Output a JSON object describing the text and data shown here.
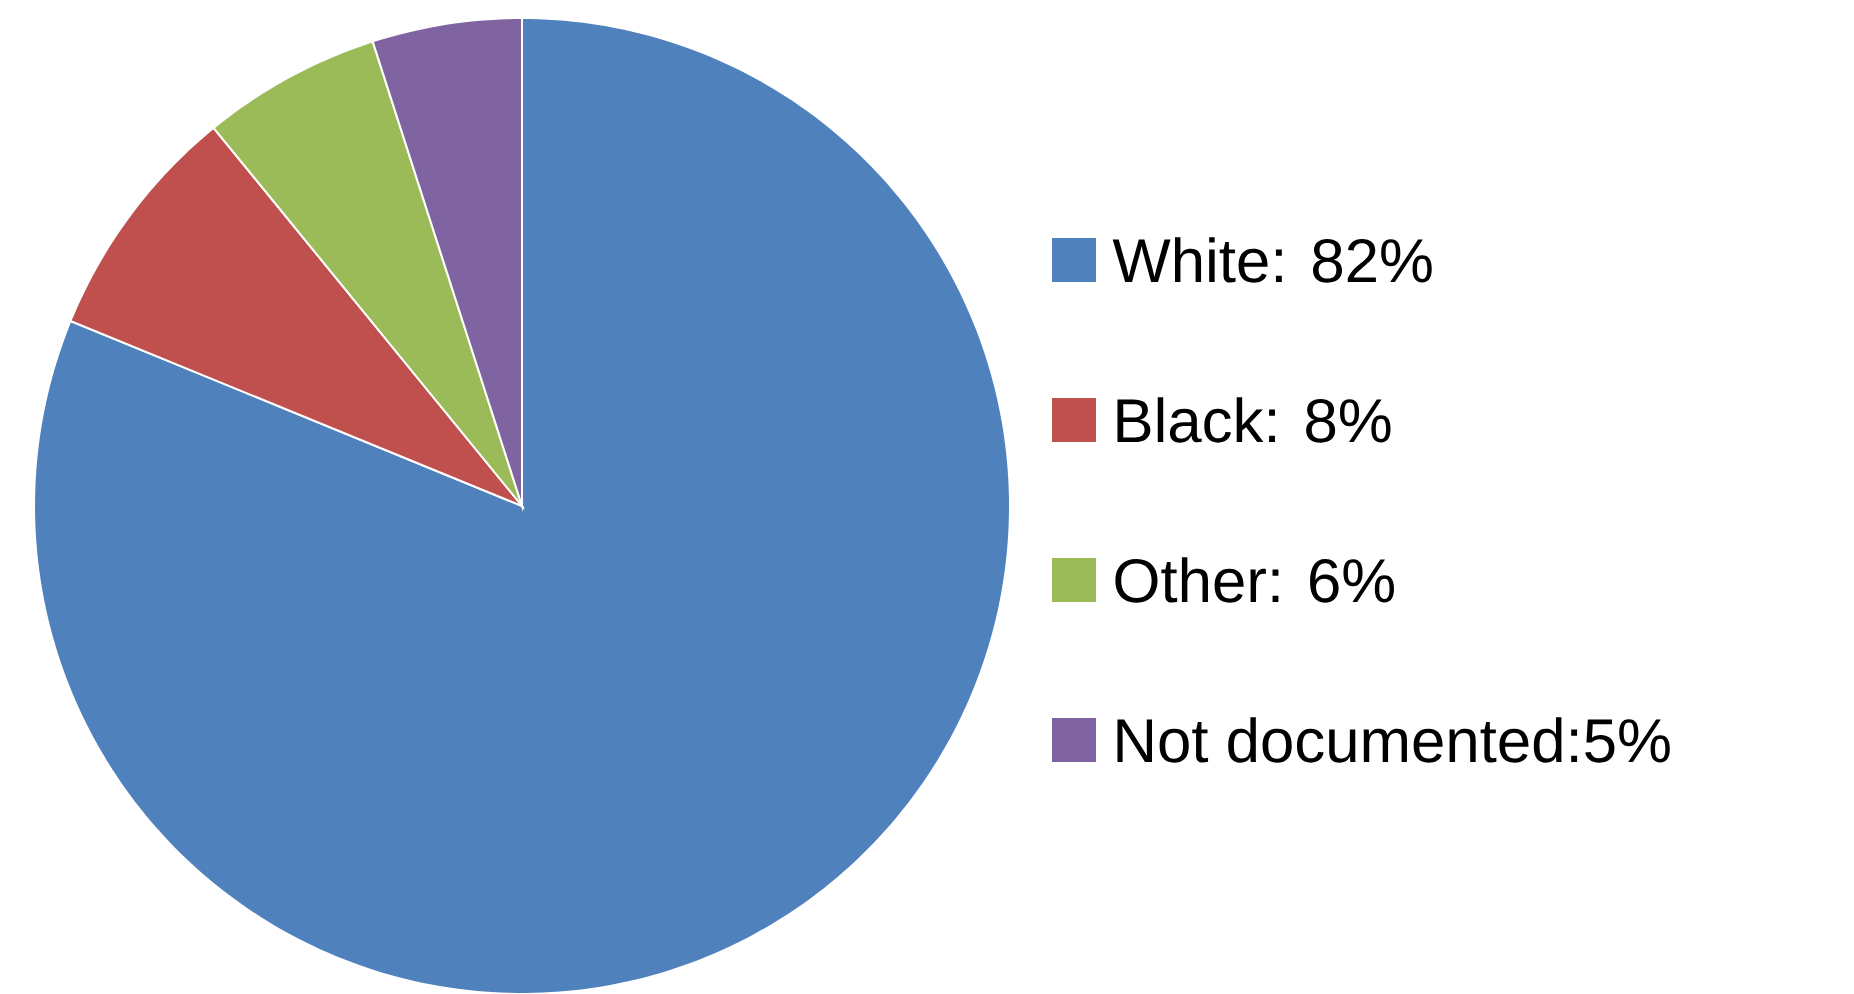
{
  "chart_data": {
    "type": "pie",
    "categories": [
      "White: 82%",
      "Black: 8%",
      "Other: 6%",
      "Not documented:5%"
    ],
    "values": [
      82,
      8,
      6,
      5
    ],
    "colors": [
      "#4f81bd",
      "#c0504d",
      "#9bbb59",
      "#8064a2"
    ],
    "legend": "right"
  }
}
